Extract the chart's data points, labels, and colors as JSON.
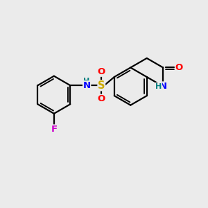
{
  "background_color": "#ebebeb",
  "bond_color": "#000000",
  "bond_width": 1.6,
  "atom_colors": {
    "N": "#0000ff",
    "O": "#ff0000",
    "S": "#ccaa00",
    "F": "#cc00cc",
    "NH_teal": "#008080",
    "C": "#000000"
  },
  "font_size": 9.5
}
